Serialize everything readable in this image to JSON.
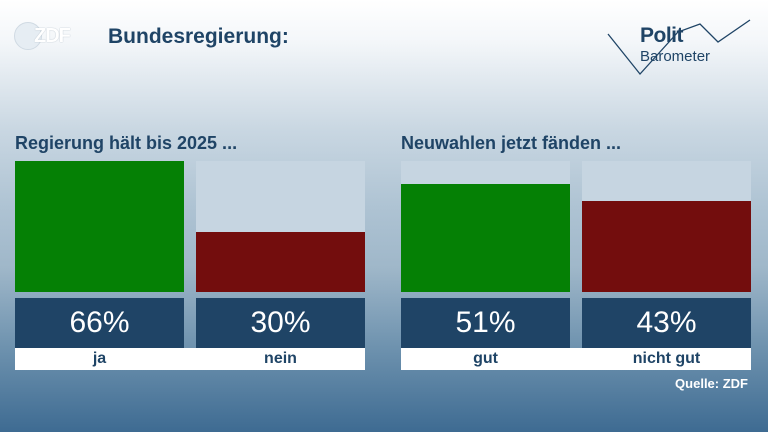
{
  "header": {
    "logo_text": "ZDF",
    "title": "Bundesregierung:",
    "brand_top": "Polit",
    "brand_bottom": "Barometer"
  },
  "source": "Quelle: ZDF",
  "colors": {
    "green": "#058005",
    "red": "#730d0d",
    "navy": "#1f4466",
    "empty": "#c6d5e1"
  },
  "chart_data": [
    {
      "type": "bar",
      "title": "Regierung hält bis 2025 ...",
      "categories": [
        "ja",
        "nein"
      ],
      "values": [
        66,
        30
      ],
      "value_labels": [
        "66%",
        "30%"
      ],
      "colors": [
        "#058005",
        "#730d0d"
      ],
      "ylim": [
        0,
        66
      ]
    },
    {
      "type": "bar",
      "title": "Neuwahlen jetzt fänden ...",
      "categories": [
        "gut",
        "nicht gut"
      ],
      "values": [
        51,
        43
      ],
      "value_labels": [
        "51%",
        "43%"
      ],
      "colors": [
        "#058005",
        "#730d0d"
      ],
      "ylim": [
        0,
        62
      ]
    }
  ]
}
